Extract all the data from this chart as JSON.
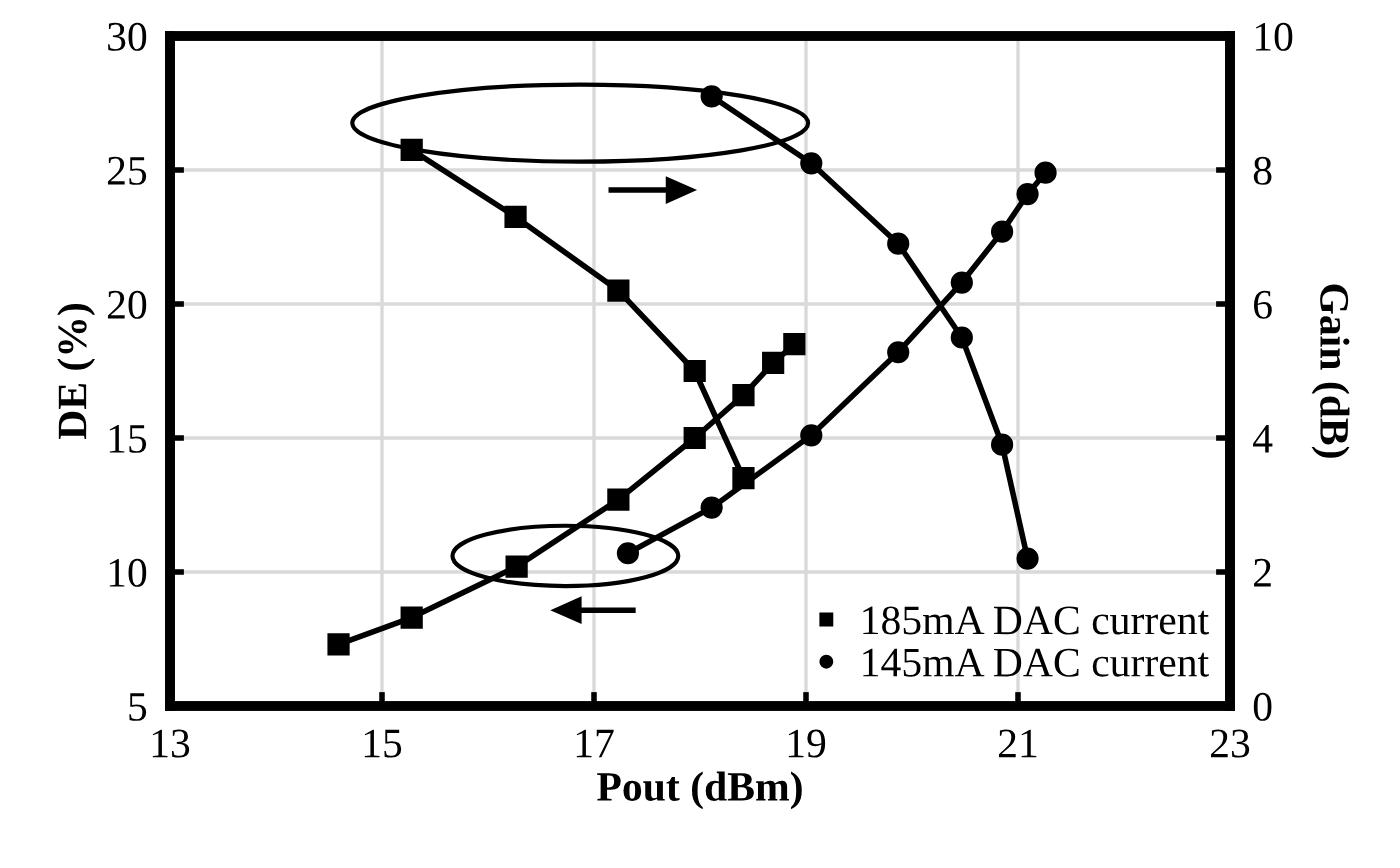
{
  "chart_data": {
    "type": "line",
    "xlabel": "Pout (dBm)",
    "ylabel": "DE (%)",
    "y2label": "Gain (dB)",
    "xlim": [
      13,
      23
    ],
    "xticks": [
      13,
      15,
      17,
      19,
      21,
      23
    ],
    "ylim": [
      5,
      30
    ],
    "yticks": [
      5,
      10,
      15,
      20,
      25,
      30
    ],
    "y2lim": [
      0,
      10
    ],
    "y2ticks": [
      0,
      2,
      4,
      6,
      8,
      10
    ],
    "grid": true,
    "legend": "bottom right",
    "series": [
      {
        "name": "185mA DAC current",
        "color": "#000000",
        "marker": "square",
        "x": [
          14.59,
          15.28,
          16.27,
          17.23,
          17.95,
          18.41,
          18.69,
          18.89
        ],
        "values": [
          7.3,
          8.3,
          10.2,
          12.7,
          15.0,
          16.6,
          17.8,
          18.5
        ]
      },
      {
        "name": "145mA DAC current",
        "color": "#000000",
        "marker": "circle",
        "x": [
          17.32,
          18.11,
          19.05,
          19.87,
          20.47,
          20.85,
          21.09,
          21.26
        ],
        "values": [
          10.7,
          12.4,
          15.1,
          18.2,
          20.8,
          22.7,
          24.1,
          24.9
        ]
      },
      {
        "color": "#000000",
        "marker": "square",
        "axis": "y2",
        "x": [
          15.28,
          16.26,
          17.23,
          17.95,
          18.41
        ],
        "values": [
          8.3,
          7.3,
          6.2,
          5.0,
          3.4
        ]
      },
      {
        "color": "#000000",
        "marker": "circle",
        "axis": "y2",
        "x": [
          18.11,
          19.05,
          19.87,
          20.47,
          20.85,
          21.09
        ],
        "values": [
          9.1,
          8.1,
          6.9,
          5.5,
          3.9,
          2.2
        ]
      }
    ]
  }
}
